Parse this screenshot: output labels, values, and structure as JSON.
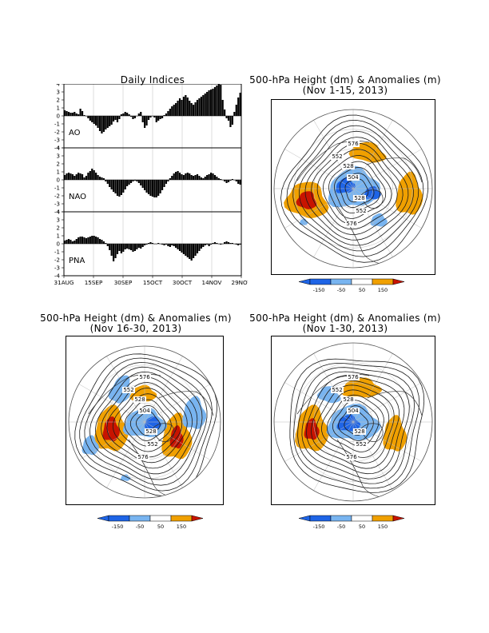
{
  "indices": {
    "title": "Daily Indices",
    "x_ticks": [
      "31AUG",
      "15SEP",
      "30SEP",
      "15OCT",
      "30OCT",
      "14NOV",
      "29NOV"
    ],
    "y_ticks": [
      "4",
      "3",
      "2",
      "1",
      "0",
      "-1",
      "-2",
      "-3",
      "-4"
    ]
  },
  "chart_data": [
    {
      "type": "bar",
      "name": "AO",
      "ylim": [
        -4,
        4
      ],
      "x_start": "2013-08-31",
      "values": [
        0.7,
        0.6,
        0.5,
        0.4,
        0.4,
        0.5,
        0.3,
        0.2,
        0.9,
        0.6,
        0.1,
        0.0,
        -0.3,
        -0.6,
        -0.8,
        -1.0,
        -1.2,
        -1.5,
        -1.9,
        -2.2,
        -2.0,
        -1.7,
        -1.5,
        -1.3,
        -1.1,
        -0.7,
        -0.5,
        -0.8,
        -0.4,
        0.2,
        0.3,
        0.5,
        0.4,
        0.2,
        -0.1,
        -0.4,
        -0.3,
        0.0,
        0.3,
        0.5,
        -0.8,
        -1.5,
        -1.2,
        -0.5,
        -0.2,
        0.0,
        -0.2,
        -0.8,
        -0.6,
        -0.4,
        -0.3,
        0.1,
        0.3,
        0.6,
        0.9,
        1.2,
        1.4,
        1.6,
        1.9,
        2.2,
        2.0,
        2.4,
        2.6,
        2.3,
        1.9,
        1.6,
        1.4,
        1.7,
        2.0,
        2.2,
        2.4,
        2.6,
        2.8,
        3.0,
        3.2,
        3.3,
        3.4,
        3.6,
        3.8,
        4.0,
        3.9,
        2.0,
        0.8,
        -0.3,
        -0.6,
        -1.4,
        -1.1,
        0.5,
        1.4,
        2.3,
        2.9
      ],
      "label": "AO"
    },
    {
      "type": "bar",
      "name": "NAO",
      "ylim": [
        -4,
        4
      ],
      "x_start": "2013-08-31",
      "values": [
        0.6,
        0.8,
        0.9,
        0.8,
        0.7,
        0.5,
        0.7,
        0.9,
        0.8,
        0.7,
        0.3,
        0.5,
        0.9,
        1.1,
        1.4,
        1.2,
        0.9,
        0.6,
        0.4,
        0.3,
        0.2,
        -0.2,
        -0.5,
        -0.9,
        -1.2,
        -1.5,
        -1.7,
        -2.0,
        -2.1,
        -1.9,
        -1.6,
        -1.2,
        -0.8,
        -0.6,
        -0.4,
        -0.2,
        -0.1,
        -0.2,
        -0.4,
        -0.7,
        -1.0,
        -1.3,
        -1.6,
        -1.8,
        -2.0,
        -2.1,
        -2.2,
        -2.2,
        -2.0,
        -1.7,
        -1.3,
        -0.9,
        -0.5,
        -0.2,
        0.2,
        0.5,
        0.8,
        1.0,
        1.1,
        0.9,
        0.7,
        0.6,
        0.8,
        0.9,
        0.8,
        0.6,
        0.5,
        0.6,
        0.7,
        0.5,
        0.3,
        0.2,
        0.4,
        0.6,
        0.7,
        0.9,
        0.8,
        0.6,
        0.4,
        0.2,
        0.1,
        0.0,
        -0.2,
        -0.4,
        -0.3,
        -0.1,
        0.1,
        0.0,
        -0.2,
        -0.5,
        -0.6
      ],
      "label": "NAO"
    },
    {
      "type": "bar",
      "name": "PNA",
      "ylim": [
        -4,
        4
      ],
      "x_start": "2013-08-31",
      "values": [
        0.4,
        0.5,
        0.6,
        0.5,
        0.3,
        0.4,
        0.6,
        0.8,
        0.9,
        0.9,
        0.8,
        0.7,
        0.8,
        0.9,
        1.0,
        1.0,
        0.9,
        0.8,
        0.6,
        0.5,
        0.3,
        0.1,
        -0.3,
        -0.8,
        -1.5,
        -2.2,
        -1.8,
        -1.3,
        -0.9,
        -1.2,
        -1.0,
        -0.7,
        -0.6,
        -0.7,
        -0.8,
        -1.0,
        -0.9,
        -0.7,
        -0.5,
        -0.6,
        -0.4,
        -0.2,
        -0.1,
        0.1,
        0.2,
        0.1,
        0.0,
        0.0,
        0.1,
        0.0,
        -0.1,
        -0.2,
        -0.1,
        -0.3,
        -0.4,
        -0.2,
        -0.3,
        -0.5,
        -0.7,
        -0.9,
        -1.1,
        -1.3,
        -1.5,
        -1.7,
        -1.9,
        -2.1,
        -1.8,
        -1.5,
        -1.2,
        -0.9,
        -0.6,
        -0.4,
        -0.2,
        -0.1,
        -0.3,
        -0.1,
        0.1,
        0.2,
        0.1,
        0.0,
        -0.1,
        0.0,
        0.2,
        0.3,
        0.2,
        0.1,
        0.1,
        0.0,
        -0.1,
        -0.2,
        -0.1
      ],
      "label": "PNA"
    }
  ],
  "maps": [
    {
      "title_line1": "500-hPa Height (dm) & Anomalies (m)",
      "title_line2": "(Nov 1-15, 2013)",
      "contour_labels": [
        "576",
        "552",
        "528",
        "504",
        "528",
        "552",
        "576"
      ]
    },
    {
      "title_line1": "500-hPa Height (dm) & Anomalies (m)",
      "title_line2": "(Nov 16-30, 2013)",
      "contour_labels": [
        "576",
        "552",
        "528",
        "504",
        "528",
        "552",
        "576"
      ]
    },
    {
      "title_line1": "500-hPa Height (dm) & Anomalies (m)",
      "title_line2": "(Nov 1-30, 2013)",
      "contour_labels": [
        "576",
        "552",
        "528",
        "504",
        "528",
        "552",
        "576"
      ]
    }
  ],
  "colorbar": {
    "labels": [
      "-150",
      "-50",
      "50",
      "150"
    ],
    "colors": {
      "dark_blue": "#1e64e6",
      "light_blue": "#78b4f0",
      "white": "#ffffff",
      "orange": "#f0a000",
      "red": "#c81400"
    }
  },
  "colors": {
    "positive_orange": "#f0a000",
    "positive_red": "#c81400",
    "negative_light": "#78b4f0",
    "negative_dark": "#1e64e6"
  }
}
